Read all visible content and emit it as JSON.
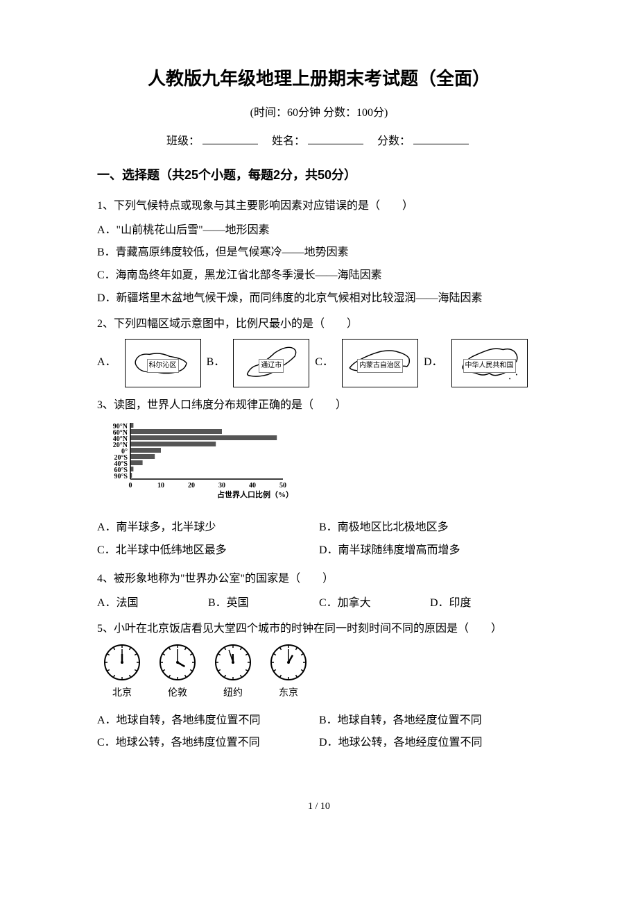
{
  "header": {
    "title": "人教版九年级地理上册期末考试题（全面）",
    "subtitle": "(时间：60分钟    分数：100分)",
    "class_label": "班级：",
    "name_label": "姓名：",
    "score_label": "分数："
  },
  "section1": {
    "heading": "一、选择题（共25个小题，每题2分，共50分）"
  },
  "q1": {
    "stem": "1、下列气候特点或现象与其主要影响因素对应错误的是（　　）",
    "a": "A．\"山前桃花山后雪\"——地形因素",
    "b": "B．青藏高原纬度较低，但是气候寒冷——地势因素",
    "c": "C．海南岛终年如夏，黑龙江省北部冬季漫长——海陆因素",
    "d": "D．新疆塔里木盆地气候干燥，而同纬度的北京气候相对比较湿润——海陆因素"
  },
  "q2": {
    "stem": "2、下列四幅区域示意图中，比例尺最小的是（　　）",
    "labels": {
      "a": "A．",
      "b": "B．",
      "c": "C．",
      "d": "D．"
    },
    "maps": {
      "a_text": "科尔沁区",
      "b_text": "通辽市",
      "c_text": "内蒙古自治区",
      "d_text": "中华人民共和国"
    }
  },
  "q3": {
    "stem": "3、读图，世界人口纬度分布规律正确的是（　　）",
    "chart": {
      "type": "bar",
      "orientation": "horizontal",
      "y_labels": [
        "90°N",
        "60°N",
        "40°N",
        "20°N",
        "0°",
        "20°S",
        "40°S",
        "60°S",
        "90°S"
      ],
      "values": [
        1,
        30,
        48,
        28,
        10,
        8,
        4,
        1,
        0.5
      ],
      "x_ticks": [
        0,
        10,
        20,
        30,
        40,
        50
      ],
      "x_label": "占世界人口比例（%）",
      "bar_color": "#555555",
      "axis_color": "#000000",
      "label_fontsize": 10
    },
    "a": "A．南半球多，北半球少",
    "b": "B．南极地区比北极地区多",
    "c": "C．北半球中低纬地区最多",
    "d": "D．南半球随纬度增高而增多"
  },
  "q4": {
    "stem": "4、被形象地称为\"世界办公室\"的国家是（　　）",
    "a": "A．法国",
    "b": "B．英国",
    "c": "C．加拿大",
    "d": "D．印度"
  },
  "q5": {
    "stem": "5、小叶在北京饭店看见大堂四个城市的时钟在同一时刻时间不同的原因是（　　）",
    "clocks": [
      {
        "city": "北京",
        "hour": 12,
        "minute": 0
      },
      {
        "city": "伦敦",
        "hour": 4,
        "minute": 0
      },
      {
        "city": "纽约",
        "hour": 11,
        "minute": 57
      },
      {
        "city": "东京",
        "hour": 1,
        "minute": 0
      }
    ],
    "a": "A．地球自转，各地纬度位置不同",
    "b": "B．地球自转，各地经度位置不同",
    "c": "C．地球公转，各地纬度位置不同",
    "d": "D．地球公转，各地经度位置不同"
  },
  "footer": {
    "page": "1 / 10"
  }
}
